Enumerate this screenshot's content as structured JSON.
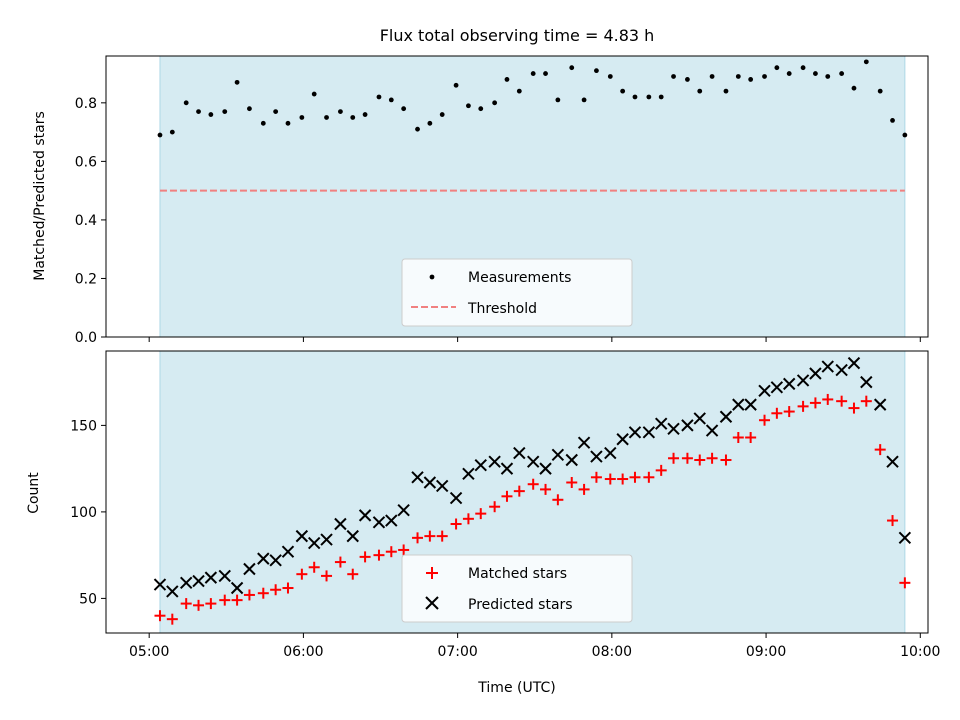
{
  "chart_data": [
    {
      "type": "scatter",
      "title": "Flux total observing time = 4.83 h",
      "xlabel": "",
      "ylabel": "Matched/Predicted stars",
      "xlim": [
        4.72,
        10.05
      ],
      "ylim": [
        0.0,
        0.96
      ],
      "xticks": [
        5,
        6,
        7,
        8,
        9,
        10
      ],
      "yticks": [
        0.0,
        0.2,
        0.4,
        0.6,
        0.8
      ],
      "ytick_labels": [
        "0.0",
        "0.2",
        "0.4",
        "0.6",
        "0.8"
      ],
      "shaded_span": [
        5.07,
        9.9
      ],
      "shade_color": "#add8e6",
      "threshold": {
        "name": "Threshold",
        "value": 0.5,
        "color": "#f08080"
      },
      "legend_position": "lower center",
      "series": [
        {
          "name": "Measurements",
          "color": "#000000",
          "marker": "dot",
          "x": [
            5.07,
            5.15,
            5.24,
            5.32,
            5.4,
            5.49,
            5.57,
            5.65,
            5.74,
            5.82,
            5.9,
            5.99,
            6.07,
            6.15,
            6.24,
            6.32,
            6.4,
            6.49,
            6.57,
            6.65,
            6.74,
            6.82,
            6.9,
            6.99,
            7.07,
            7.15,
            7.24,
            7.32,
            7.4,
            7.49,
            7.57,
            7.65,
            7.74,
            7.82,
            7.9,
            7.99,
            8.07,
            8.15,
            8.24,
            8.32,
            8.4,
            8.49,
            8.57,
            8.65,
            8.74,
            8.82,
            8.9,
            8.99,
            9.07,
            9.15,
            9.24,
            9.32,
            9.4,
            9.49,
            9.57,
            9.65,
            9.74,
            9.82,
            9.9
          ],
          "y": [
            0.69,
            0.7,
            0.8,
            0.77,
            0.76,
            0.77,
            0.87,
            0.78,
            0.73,
            0.77,
            0.73,
            0.75,
            0.83,
            0.75,
            0.77,
            0.75,
            0.76,
            0.82,
            0.81,
            0.78,
            0.71,
            0.73,
            0.76,
            0.86,
            0.79,
            0.78,
            0.8,
            0.88,
            0.84,
            0.9,
            0.9,
            0.81,
            0.92,
            0.81,
            0.91,
            0.89,
            0.84,
            0.82,
            0.82,
            0.82,
            0.89,
            0.88,
            0.84,
            0.89,
            0.84,
            0.89,
            0.88,
            0.89,
            0.92,
            0.9,
            0.92,
            0.9,
            0.89,
            0.9,
            0.85,
            0.94,
            0.84,
            0.74,
            0.69
          ]
        }
      ]
    },
    {
      "type": "scatter",
      "title": "",
      "xlabel": "Time (UTC)",
      "ylabel": "Count",
      "xlim": [
        4.72,
        10.05
      ],
      "ylim": [
        30,
        193
      ],
      "xticks": [
        5,
        6,
        7,
        8,
        9,
        10
      ],
      "xtick_labels": [
        "05:00",
        "06:00",
        "07:00",
        "08:00",
        "09:00",
        "10:00"
      ],
      "yticks": [
        50,
        100,
        150
      ],
      "ytick_labels": [
        "50",
        "100",
        "150"
      ],
      "shaded_span": [
        5.07,
        9.9
      ],
      "shade_color": "#add8e6",
      "legend_position": "lower center",
      "series": [
        {
          "name": "Matched stars",
          "color": "#ff0000",
          "marker": "plus",
          "x": [
            5.07,
            5.15,
            5.24,
            5.32,
            5.4,
            5.49,
            5.57,
            5.65,
            5.74,
            5.82,
            5.9,
            5.99,
            6.07,
            6.15,
            6.24,
            6.32,
            6.4,
            6.49,
            6.57,
            6.65,
            6.74,
            6.82,
            6.9,
            6.99,
            7.07,
            7.15,
            7.24,
            7.32,
            7.4,
            7.49,
            7.57,
            7.65,
            7.74,
            7.82,
            7.9,
            7.99,
            8.07,
            8.15,
            8.24,
            8.32,
            8.4,
            8.49,
            8.57,
            8.65,
            8.74,
            8.82,
            8.9,
            8.99,
            9.07,
            9.15,
            9.24,
            9.32,
            9.4,
            9.49,
            9.57,
            9.65,
            9.74,
            9.82,
            9.9
          ],
          "y": [
            40,
            38,
            47,
            46,
            47,
            49,
            49,
            52,
            53,
            55,
            56,
            64,
            68,
            63,
            71,
            64,
            74,
            75,
            77,
            78,
            85,
            86,
            86,
            93,
            96,
            99,
            103,
            109,
            112,
            116,
            113,
            107,
            117,
            113,
            120,
            119,
            119,
            120,
            120,
            124,
            131,
            131,
            130,
            131,
            130,
            143,
            143,
            153,
            157,
            158,
            161,
            163,
            165,
            164,
            160,
            164,
            136,
            95,
            59
          ]
        },
        {
          "name": "Predicted stars",
          "color": "#000000",
          "marker": "x",
          "x": [
            5.07,
            5.15,
            5.24,
            5.32,
            5.4,
            5.49,
            5.57,
            5.65,
            5.74,
            5.82,
            5.9,
            5.99,
            6.07,
            6.15,
            6.24,
            6.32,
            6.4,
            6.49,
            6.57,
            6.65,
            6.74,
            6.82,
            6.9,
            6.99,
            7.07,
            7.15,
            7.24,
            7.32,
            7.4,
            7.49,
            7.57,
            7.65,
            7.74,
            7.82,
            7.9,
            7.99,
            8.07,
            8.15,
            8.24,
            8.32,
            8.4,
            8.49,
            8.57,
            8.65,
            8.74,
            8.82,
            8.9,
            8.99,
            9.07,
            9.15,
            9.24,
            9.32,
            9.4,
            9.49,
            9.57,
            9.65,
            9.74,
            9.82,
            9.9
          ],
          "y": [
            58,
            54,
            59,
            60,
            62,
            63,
            56,
            67,
            73,
            72,
            77,
            86,
            82,
            84,
            93,
            86,
            98,
            94,
            95,
            101,
            120,
            117,
            115,
            108,
            122,
            127,
            129,
            125,
            134,
            129,
            125,
            133,
            130,
            140,
            132,
            134,
            142,
            146,
            146,
            151,
            148,
            150,
            154,
            147,
            155,
            162,
            162,
            170,
            172,
            174,
            176,
            180,
            184,
            182,
            186,
            175,
            162,
            129,
            85
          ]
        }
      ]
    }
  ]
}
